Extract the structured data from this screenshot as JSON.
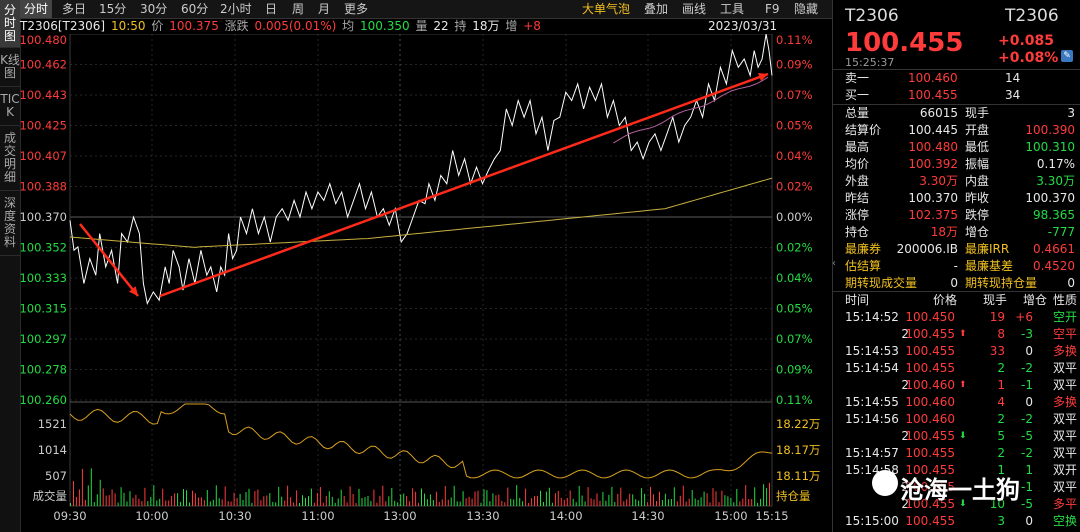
{
  "vtabs": [
    "分时图",
    "K线图",
    "TICK",
    "成交明细",
    "深度资料"
  ],
  "toolbar": {
    "periods": [
      "分时",
      "多日",
      "15分",
      "30分",
      "60分",
      "2小时",
      "日",
      "周",
      "月",
      "更多"
    ],
    "right": [
      "大单气泡",
      "叠加",
      "画线",
      "工具",
      "F9",
      "隐藏"
    ]
  },
  "info": {
    "contract": "T2306[T2306]",
    "time": "10:50",
    "price_label": "价",
    "price": "100.375",
    "chg_label": "涨跌",
    "chg": "0.005(0.01%)",
    "avg_label": "均",
    "avg": "100.350",
    "vol_label": "量",
    "vol": "22",
    "oi_label": "持",
    "oi": "18万",
    "inc_label": "增",
    "inc": "+8",
    "date": "2023/03/31"
  },
  "chart_data": {
    "type": "line",
    "y_left": [
      "100.480",
      "100.462",
      "100.443",
      "100.425",
      "100.407",
      "100.388",
      "100.370",
      "100.352",
      "100.333",
      "100.315",
      "100.297",
      "100.278",
      "100.260"
    ],
    "y_right": [
      "0.11%",
      "0.09%",
      "0.07%",
      "0.05%",
      "0.04%",
      "0.02%",
      "0.00%",
      "0.02%",
      "0.04%",
      "0.05%",
      "0.07%",
      "0.09%",
      "0.11%"
    ],
    "x_ticks": [
      "09:30",
      "10:00",
      "10:30",
      "11:00",
      "13:00",
      "13:30",
      "14:00",
      "14:30",
      "15:00",
      "15:15"
    ],
    "vol_left": [
      "1521",
      "1014",
      "507",
      "成交量"
    ],
    "vol_right": [
      "18.22万",
      "18.17万",
      "18.11万",
      "持仓量"
    ],
    "ylim": [
      100.26,
      100.48
    ],
    "prev_settle": 100.37,
    "colors": {
      "price": "#ffffff",
      "avg": "#c8b040",
      "oi": "#d9a020",
      "ma": "#b0609a",
      "arrow": "#ff2a1a",
      "up": "#ff3b3b",
      "down": "#22dd44"
    }
  },
  "panel": {
    "symbol": "T2306",
    "symbol2": "T2306",
    "last": "100.455",
    "chg": "+0.085",
    "pct": "+0.08%",
    "time": "15:25:37",
    "ask_label": "卖一",
    "ask": "100.460",
    "ask_vol": "14",
    "bid_label": "买一",
    "bid": "100.455",
    "bid_vol": "34",
    "stats": [
      [
        "总量",
        "66015",
        "现手",
        "3"
      ],
      [
        "结算价",
        "100.445",
        "开盘",
        "100.390"
      ],
      [
        "最高",
        "100.480",
        "最低",
        "100.310"
      ],
      [
        "均价",
        "100.392",
        "振幅",
        "0.17%"
      ],
      [
        "外盘",
        "3.30万",
        "内盘",
        "3.30万"
      ],
      [
        "昨结",
        "100.370",
        "昨收",
        "100.370"
      ],
      [
        "涨停",
        "102.375",
        "跌停",
        "98.365"
      ],
      [
        "持仓",
        "18万",
        "增仓",
        "-777"
      ],
      [
        "最廉券",
        "200006.IB",
        "最廉IRR",
        "0.4661"
      ],
      [
        "估结算",
        "-",
        "最廉基差",
        "0.4520"
      ],
      [
        "期转现成交量",
        "0",
        "期转现持仓量",
        "0"
      ]
    ],
    "tick_headers": [
      "时间",
      "价格",
      "现手",
      "增仓",
      "性质"
    ],
    "ticks": [
      [
        "15:14:52",
        "100.450",
        "19",
        "+6",
        "空开"
      ],
      [
        "2",
        "100.455",
        "8",
        "-3",
        "空平"
      ],
      [
        "15:14:53",
        "100.455",
        "33",
        "0",
        "多换"
      ],
      [
        "15:14:54",
        "100.455",
        "2",
        "-2",
        "双平"
      ],
      [
        "2",
        "100.460",
        "1",
        "-1",
        "双平"
      ],
      [
        "15:14:55",
        "100.460",
        "4",
        "0",
        "多换"
      ],
      [
        "15:14:56",
        "100.460",
        "2",
        "-2",
        "双平"
      ],
      [
        "2",
        "100.455",
        "5",
        "-5",
        "双平"
      ],
      [
        "15:14:57",
        "100.455",
        "2",
        "-2",
        "双平"
      ],
      [
        "15:14:58",
        "100.455",
        "1",
        "1",
        "双开"
      ],
      [
        "2",
        "100.455",
        "1",
        "-1",
        "双平"
      ],
      [
        "2",
        "100.455",
        "10",
        "-5",
        "多平"
      ],
      [
        "15:15:00",
        "100.455",
        "3",
        "0",
        "空换"
      ]
    ]
  },
  "watermark": "沧海一土狗"
}
